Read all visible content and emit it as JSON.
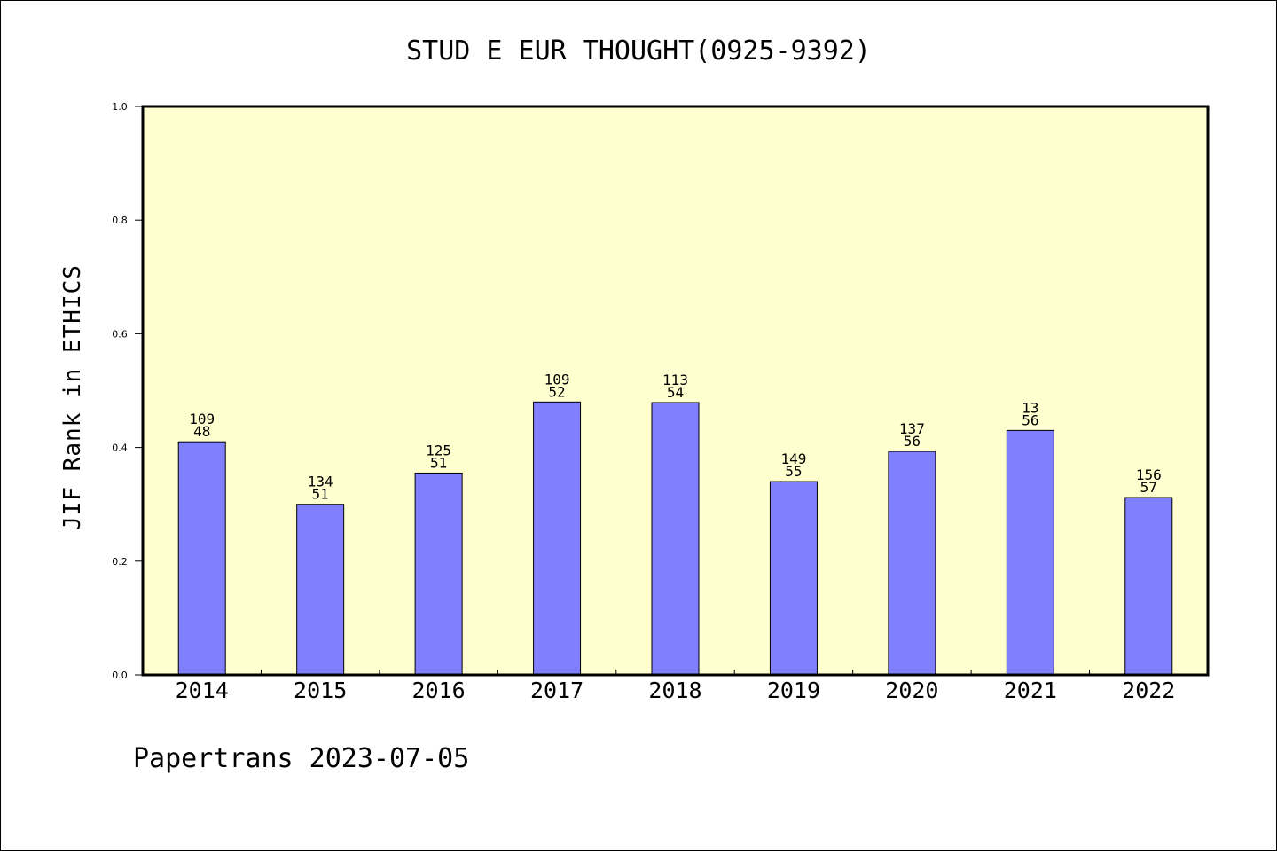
{
  "chart_data": {
    "type": "bar",
    "title": "STUD E EUR THOUGHT(0925-9392)",
    "xlabel": "",
    "ylabel": "JIF Rank in ETHICS",
    "ylim": [
      0.0,
      1.0
    ],
    "yticks": [
      "0.0",
      "0.2",
      "0.4",
      "0.6",
      "0.8",
      "1.0"
    ],
    "categories": [
      "2014",
      "2015",
      "2016",
      "2017",
      "2018",
      "2019",
      "2020",
      "2021",
      "2022"
    ],
    "values": [
      0.41,
      0.3,
      0.355,
      0.48,
      0.479,
      0.34,
      0.393,
      0.43,
      0.312
    ],
    "labels_top": [
      "109",
      "134",
      "125",
      "109",
      "113",
      "149",
      "137",
      "13",
      "156"
    ],
    "labels_bottom": [
      "48",
      "51",
      "51",
      "52",
      "54",
      "55",
      "56",
      "56",
      "57"
    ],
    "grid": false,
    "legend": "none",
    "colors": {
      "bar": "#8080ff",
      "plot_background": "#ffffd0",
      "axes": "#000000"
    }
  },
  "footer": {
    "text": "Papertrans 2023-07-05"
  }
}
